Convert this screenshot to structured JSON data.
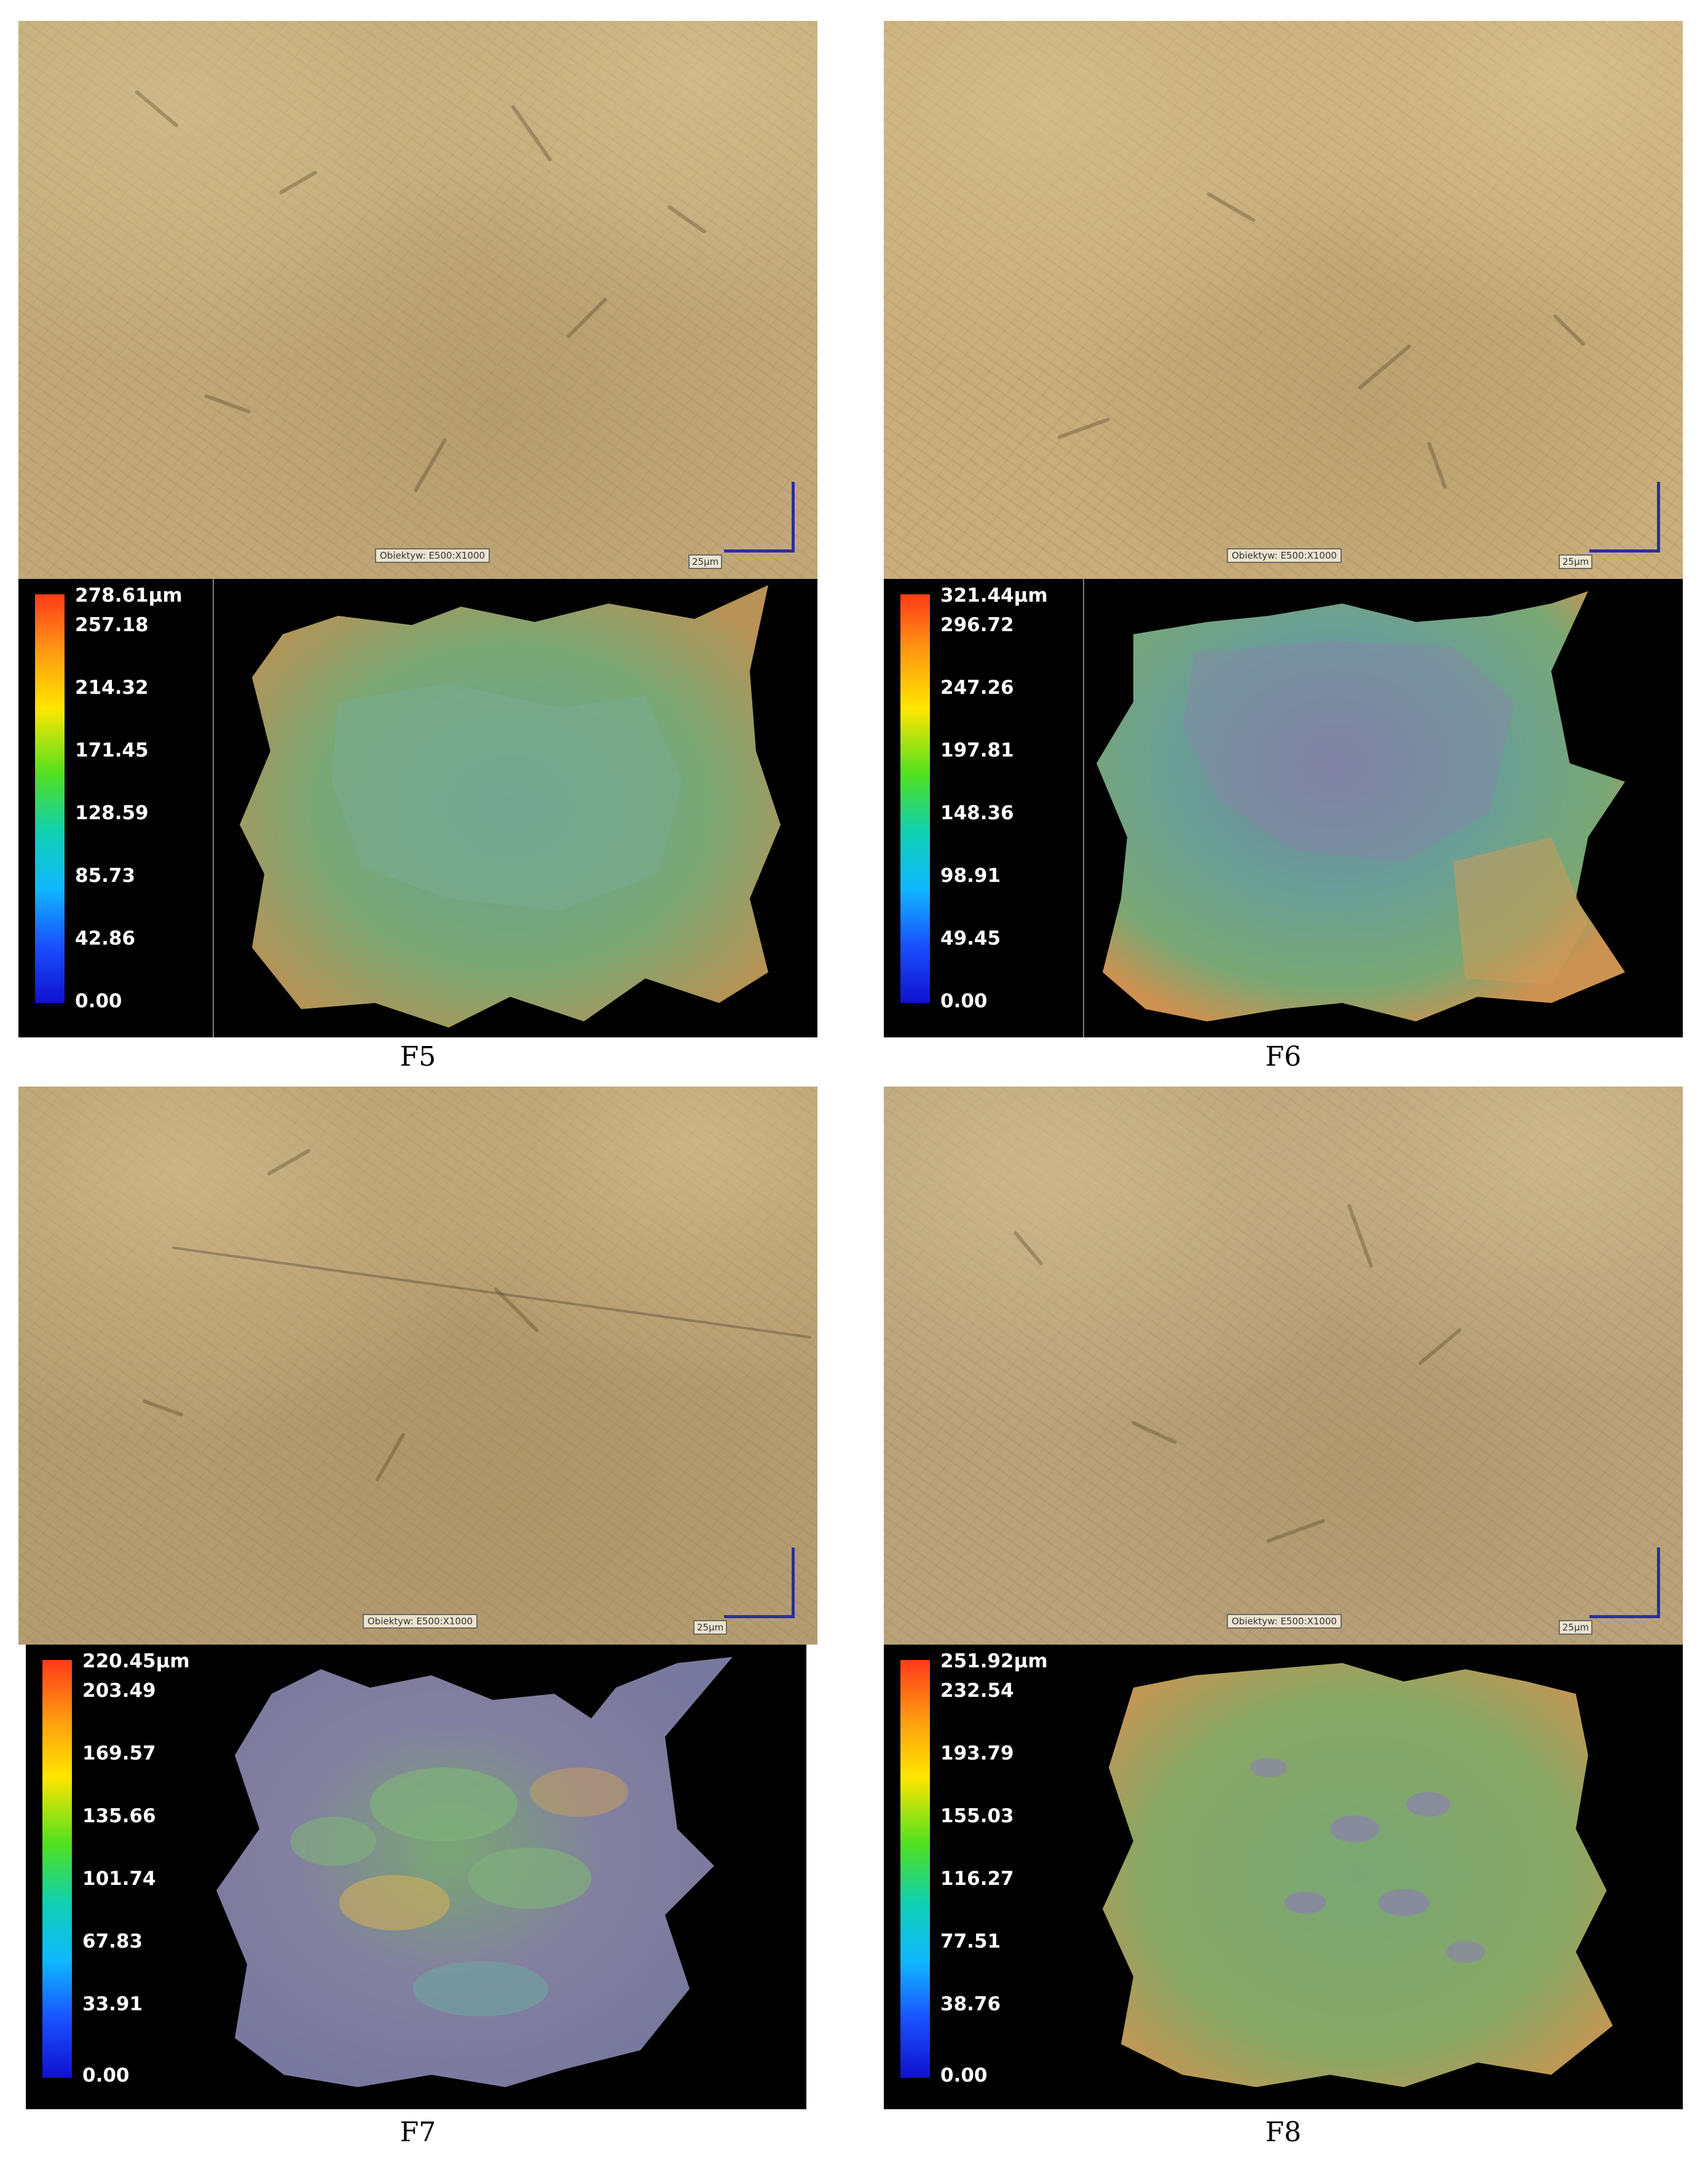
{
  "figures": [
    {
      "id": "F5",
      "caption": "F5",
      "objective_label": "Obiektyw: E500:X1000",
      "scale_label": "25µm",
      "colorbar_ticks": [
        "278.61µm",
        "257.18",
        "214.32",
        "171.45",
        "128.59",
        "85.73",
        "42.86",
        "0.00"
      ],
      "colorbar_max_um": 278.61
    },
    {
      "id": "F6",
      "caption": "F6",
      "objective_label": "Obiektyw: E500:X1000",
      "scale_label": "25µm",
      "colorbar_ticks": [
        "321.44µm",
        "296.72",
        "247.26",
        "197.81",
        "148.36",
        "98.91",
        "49.45",
        "0.00"
      ],
      "colorbar_max_um": 321.44
    },
    {
      "id": "F7",
      "caption": "F7",
      "objective_label": "Obiektyw: E500:X1000",
      "scale_label": "25µm",
      "colorbar_ticks": [
        "220.45µm",
        "203.49",
        "169.57",
        "135.66",
        "101.74",
        "67.83",
        "33.91",
        "0.00"
      ],
      "colorbar_max_um": 220.45
    },
    {
      "id": "F8",
      "caption": "F8",
      "objective_label": "Obiektyw: E500:X1000",
      "scale_label": "25µm",
      "colorbar_ticks": [
        "251.92µm",
        "232.54",
        "193.79",
        "155.03",
        "116.27",
        "77.51",
        "38.76",
        "0.00"
      ],
      "colorbar_max_um": 251.92
    }
  ],
  "colors": {
    "surface_green": "#7fb07a",
    "surface_teal": "#6fa7a0",
    "surface_orange": "#d79a55",
    "surface_purple": "#8a86a8",
    "scale_bar": "#2a2ea0"
  }
}
